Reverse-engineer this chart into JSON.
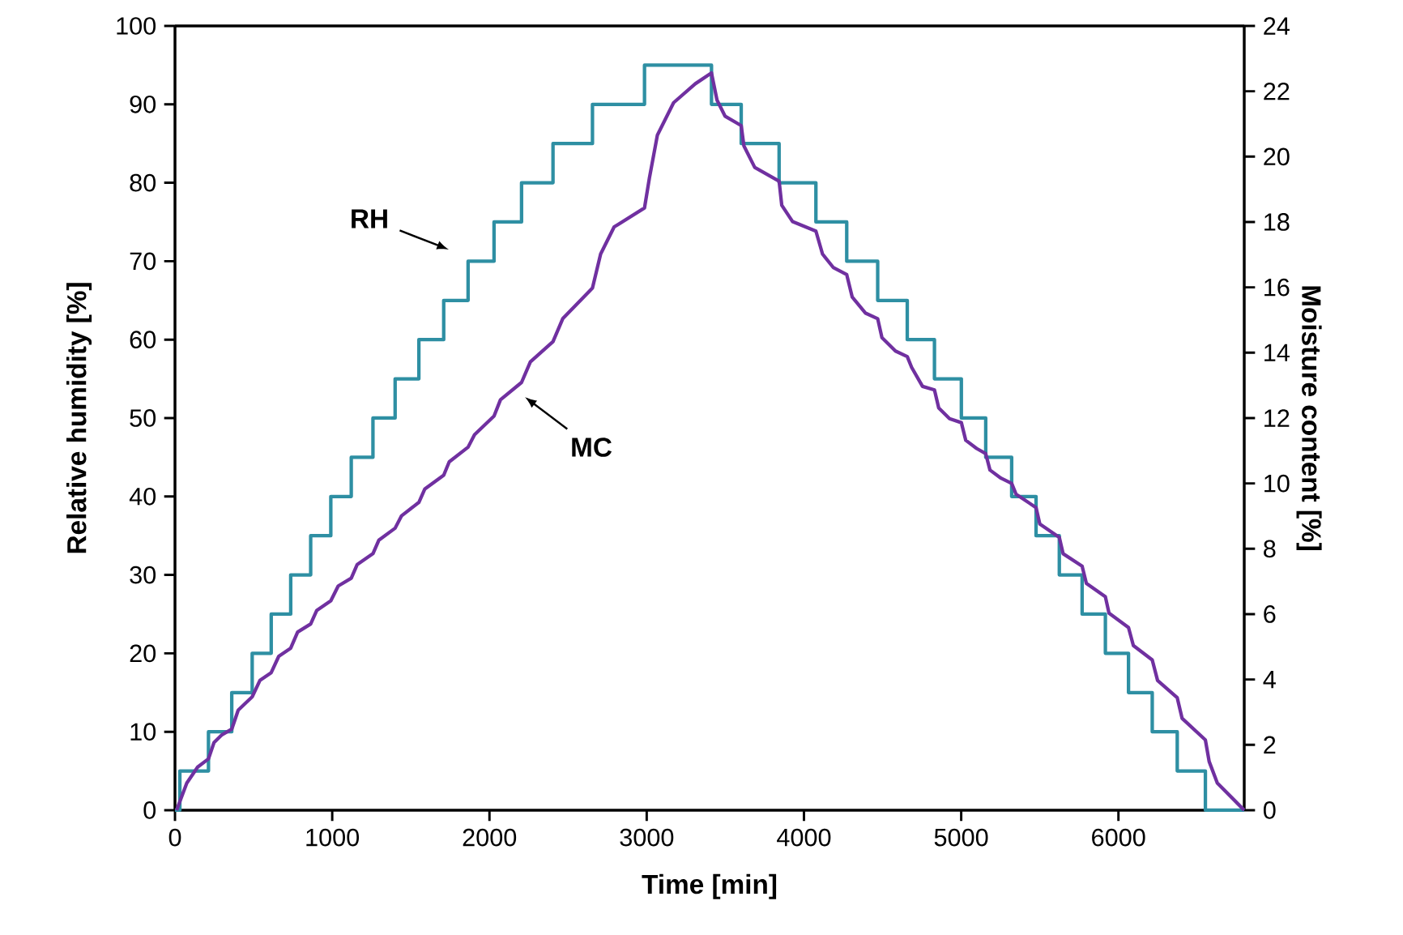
{
  "chart_data": {
    "type": "line",
    "xlabel": "Time [min]",
    "ylabel": "Relative humidity [%]",
    "y2label": "Moisture content [%]",
    "xlim": [
      0,
      6800
    ],
    "xticks": [
      0,
      1000,
      2000,
      3000,
      4000,
      5000,
      6000
    ],
    "ylim": [
      0,
      100
    ],
    "yticks": [
      0,
      10,
      20,
      30,
      40,
      50,
      60,
      70,
      80,
      90,
      100
    ],
    "y2lim": [
      0,
      24
    ],
    "y2ticks": [
      0,
      2,
      4,
      6,
      8,
      10,
      12,
      14,
      16,
      18,
      20,
      22,
      24
    ],
    "series": [
      {
        "type": "step",
        "color": "#2e8fa3",
        "x": [
          0,
          31,
          213,
          361,
          491,
          612,
          736,
          863,
          991,
          1121,
          1259,
          1400,
          1551,
          1709,
          1864,
          2029,
          2204,
          2404,
          2655,
          2986,
          3412,
          3601,
          3842,
          4076,
          4272,
          4469,
          4657,
          4830,
          5001,
          5156,
          5321,
          5476,
          5624,
          5769,
          5917,
          6064,
          6215,
          6374,
          6553,
          6800
        ],
        "values": [
          0,
          5,
          10,
          15,
          20,
          25,
          30,
          35,
          40,
          45,
          50,
          55,
          60,
          65,
          70,
          75,
          80,
          85,
          90,
          95,
          90,
          85,
          80,
          75,
          70,
          65,
          60,
          55,
          50,
          45,
          40,
          35,
          30,
          25,
          20,
          15,
          10,
          5,
          0,
          0
        ]
      },
      {
        "axis": "y2",
        "color": "#7030a0",
        "x": [
          10,
          75,
          144,
          213,
          248,
          299,
          361,
          402,
          491,
          540,
          612,
          660,
          736,
          780,
          863,
          901,
          991,
          1038,
          1121,
          1159,
          1259,
          1296,
          1400,
          1441,
          1551,
          1589,
          1709,
          1744,
          1864,
          1905,
          2029,
          2070,
          2204,
          2260,
          2404,
          2466,
          2655,
          2707,
          2793,
          2986,
          3017,
          3068,
          3171,
          3309,
          3412,
          3447,
          3498,
          3601,
          3618,
          3687,
          3842,
          3859,
          3928,
          4076,
          4118,
          4186,
          4272,
          4307,
          4392,
          4469,
          4496,
          4582,
          4657,
          4685,
          4754,
          4830,
          4857,
          4926,
          5001,
          5029,
          5098,
          5156,
          5183,
          5253,
          5321,
          5349,
          5476,
          5500,
          5624,
          5648,
          5769,
          5796,
          5917,
          5940,
          6064,
          6095,
          6215,
          6249,
          6374,
          6405,
          6553,
          6577,
          6629,
          6800
        ],
        "values": [
          0,
          0.83,
          1.32,
          1.57,
          2.07,
          2.31,
          2.48,
          3.06,
          3.47,
          3.97,
          4.21,
          4.71,
          4.96,
          5.45,
          5.7,
          6.11,
          6.41,
          6.86,
          7.1,
          7.52,
          7.85,
          8.26,
          8.63,
          9.01,
          9.42,
          9.83,
          10.25,
          10.66,
          11.11,
          11.49,
          12.06,
          12.56,
          13.09,
          13.72,
          14.34,
          15.04,
          15.98,
          17.02,
          17.85,
          18.43,
          19.34,
          20.66,
          21.65,
          22.23,
          22.56,
          21.73,
          21.24,
          20.95,
          20.33,
          19.67,
          19.25,
          18.51,
          18.01,
          17.72,
          17.02,
          16.61,
          16.39,
          15.7,
          15.21,
          15.04,
          14.46,
          14.05,
          13.88,
          13.55,
          12.97,
          12.86,
          12.31,
          11.98,
          11.86,
          11.32,
          11.07,
          10.91,
          10.41,
          10.16,
          10.0,
          9.67,
          9.26,
          8.76,
          8.35,
          7.85,
          7.47,
          6.94,
          6.53,
          6.03,
          5.59,
          5.04,
          4.6,
          3.97,
          3.44,
          2.81,
          2.15,
          1.49,
          0.83,
          0
        ]
      }
    ],
    "annotations": [
      "RH",
      "MC"
    ]
  }
}
